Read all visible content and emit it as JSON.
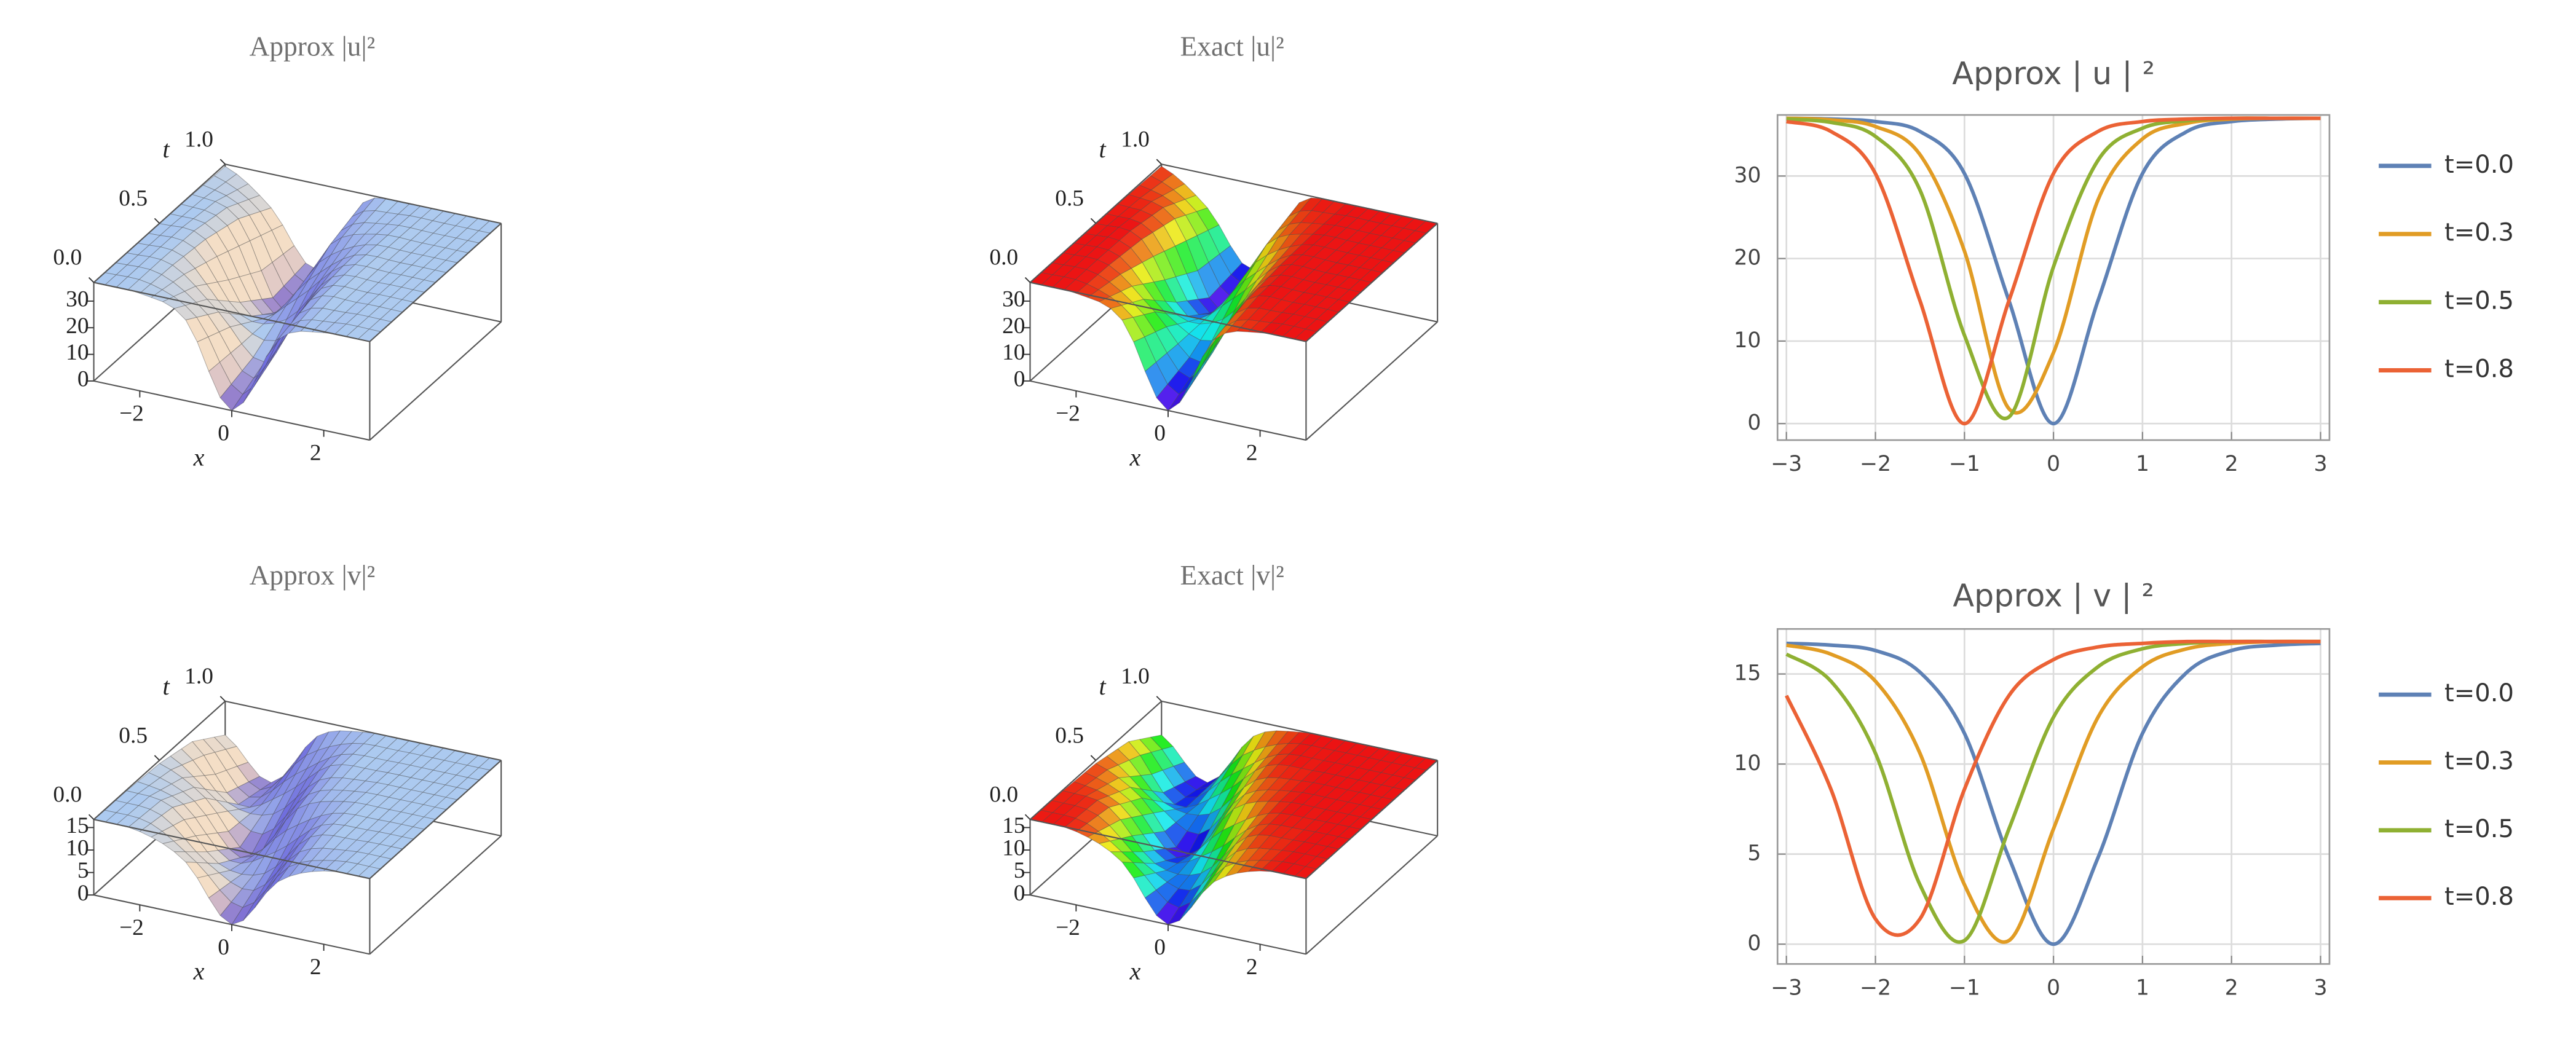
{
  "chart_data": [
    {
      "type": "surface",
      "title": "Approx |u|²",
      "xlabel": "x",
      "ylabel": "t",
      "colormap": "light",
      "x": [
        -3,
        -2,
        -1,
        0,
        1,
        2,
        3
      ],
      "t": [
        0,
        0.25,
        0.5,
        0.75,
        1
      ],
      "z": [
        [
          37.0,
          36.6,
          30.3,
          0,
          30.3,
          36.6,
          37.0
        ],
        [
          37.0,
          36.1,
          22.2,
          7.1,
          34.2,
          36.9,
          37.0
        ],
        [
          36.9,
          34.7,
          9.5,
          20.0,
          35.9,
          37.0,
          37.0
        ],
        [
          36.7,
          31.3,
          0.3,
          29.1,
          36.6,
          37.0,
          37.0
        ],
        [
          36.2,
          24.3,
          4.7,
          33.7,
          36.8,
          37.0,
          37.0
        ]
      ],
      "xlim": [
        -3,
        3
      ],
      "ylim": [
        0,
        1
      ],
      "zlim": [
        0,
        37
      ],
      "xticks": [
        {
          "value": -2,
          "label": "−2"
        },
        0,
        2
      ],
      "yticks": [
        {
          "value": 0,
          "label": "0.0"
        },
        {
          "value": 0.5,
          "label": "0.5"
        },
        {
          "value": 1,
          "label": "1.0"
        }
      ],
      "zticks": [
        0,
        10,
        20,
        30
      ]
    },
    {
      "type": "surface",
      "title": "Exact |u|²",
      "xlabel": "x",
      "ylabel": "t",
      "colormap": "rainbow",
      "x": [
        -3,
        -2,
        -1,
        0,
        1,
        2,
        3
      ],
      "t": [
        0,
        0.25,
        0.5,
        0.75,
        1
      ],
      "z": [
        [
          37.0,
          36.6,
          30.3,
          0,
          30.3,
          36.6,
          37.0
        ],
        [
          37.0,
          36.1,
          22.2,
          7.1,
          34.2,
          36.9,
          37.0
        ],
        [
          36.9,
          34.7,
          9.5,
          20.0,
          35.9,
          37.0,
          37.0
        ],
        [
          36.7,
          31.3,
          0.3,
          29.1,
          36.6,
          37.0,
          37.0
        ],
        [
          36.2,
          24.3,
          4.7,
          33.7,
          36.8,
          37.0,
          37.0
        ]
      ],
      "xlim": [
        -3,
        3
      ],
      "ylim": [
        0,
        1
      ],
      "zlim": [
        0,
        37
      ],
      "xticks": [
        {
          "value": -2,
          "label": "−2"
        },
        0,
        2
      ],
      "yticks": [
        {
          "value": 0,
          "label": "0.0"
        },
        {
          "value": 0.5,
          "label": "0.5"
        },
        {
          "value": 1,
          "label": "1.0"
        }
      ],
      "zticks": [
        0,
        10,
        20,
        30
      ]
    },
    {
      "type": "line",
      "title": "Approx | u | ²",
      "legend": "right",
      "grid": true,
      "x": [
        -3,
        -2.5,
        -2,
        -1.5,
        -1,
        -0.5,
        0,
        0.5,
        1,
        1.5,
        2,
        2.5,
        3
      ],
      "series": [
        {
          "name": "t=0.0",
          "color": "#5e81b5",
          "values": [
            37.0,
            36.9,
            36.6,
            35.4,
            30.3,
            14.9,
            0,
            14.9,
            30.3,
            35.4,
            36.6,
            36.9,
            37.0
          ]
        },
        {
          "name": "t=0.3",
          "color": "#e19c24",
          "values": [
            37.0,
            36.8,
            36.0,
            32.6,
            20.9,
            1.8,
            8.6,
            27.1,
            34.5,
            36.4,
            36.9,
            37.0,
            37.0
          ]
        },
        {
          "name": "t=0.5",
          "color": "#8fb032",
          "values": [
            36.9,
            36.5,
            34.8,
            28.3,
            10.7,
            0.8,
            19.0,
            31.9,
            35.8,
            36.7,
            37.0,
            37.0,
            37.0
          ]
        },
        {
          "name": "t=0.8",
          "color": "#eb6235",
          "values": [
            36.6,
            35.4,
            30.3,
            14.9,
            0,
            14.9,
            30.3,
            35.4,
            36.6,
            36.9,
            37.0,
            37.0,
            37.0
          ]
        }
      ],
      "xlim": [
        -3.1,
        3.1
      ],
      "ylim": [
        -2,
        37.4
      ],
      "xticks": [
        {
          "value": -3,
          "label": "−3"
        },
        {
          "value": -2,
          "label": "−2"
        },
        {
          "value": -1,
          "label": "−1"
        },
        0,
        1,
        2,
        3
      ],
      "yticks": [
        0,
        10,
        20,
        30
      ]
    },
    {
      "type": "surface",
      "title": "Approx |v|²",
      "xlabel": "x",
      "ylabel": "t",
      "colormap": "light",
      "x": [
        -3,
        -2,
        -1,
        0,
        1,
        2,
        3
      ],
      "t": [
        0,
        0.25,
        0.5,
        0.75,
        1
      ],
      "z": [
        [
          16.7,
          16.3,
          11.7,
          0,
          11.7,
          16.3,
          16.7
        ],
        [
          16.6,
          15.1,
          4.8,
          4.8,
          15.1,
          16.6,
          16.8
        ],
        [
          16.1,
          10.6,
          0.2,
          12.6,
          16.4,
          16.8,
          16.8
        ],
        [
          14.4,
          2.6,
          7.2,
          15.6,
          16.7,
          16.8,
          16.8
        ],
        [
          9.3,
          0.9,
          13.4,
          16.5,
          16.8,
          16.8,
          16.8
        ]
      ],
      "xlim": [
        -3,
        3
      ],
      "ylim": [
        0,
        1
      ],
      "zlim": [
        0,
        16.8
      ],
      "xticks": [
        {
          "value": -2,
          "label": "−2"
        },
        0,
        2
      ],
      "yticks": [
        {
          "value": 0,
          "label": "0.0"
        },
        {
          "value": 0.5,
          "label": "0.5"
        },
        {
          "value": 1,
          "label": "1.0"
        }
      ],
      "zticks": [
        0,
        5,
        10,
        15
      ]
    },
    {
      "type": "surface",
      "title": "Exact |v|²",
      "xlabel": "x",
      "ylabel": "t",
      "colormap": "rainbow",
      "x": [
        -3,
        -2,
        -1,
        0,
        1,
        2,
        3
      ],
      "t": [
        0,
        0.25,
        0.5,
        0.75,
        1
      ],
      "z": [
        [
          16.7,
          16.3,
          11.7,
          0,
          11.7,
          16.3,
          16.7
        ],
        [
          16.6,
          15.1,
          4.8,
          4.8,
          15.1,
          16.6,
          16.8
        ],
        [
          16.1,
          10.6,
          0.2,
          12.6,
          16.4,
          16.8,
          16.8
        ],
        [
          14.4,
          2.6,
          7.2,
          15.6,
          16.7,
          16.8,
          16.8
        ],
        [
          9.3,
          0.9,
          13.4,
          16.5,
          16.8,
          16.8,
          16.8
        ]
      ],
      "xlim": [
        -3,
        3
      ],
      "ylim": [
        0,
        1
      ],
      "zlim": [
        0,
        16.8
      ],
      "xticks": [
        {
          "value": -2,
          "label": "−2"
        },
        0,
        2
      ],
      "yticks": [
        {
          "value": 0,
          "label": "0.0"
        },
        {
          "value": 0.5,
          "label": "0.5"
        },
        {
          "value": 1,
          "label": "1.0"
        }
      ],
      "zticks": [
        0,
        5,
        10,
        15
      ]
    },
    {
      "type": "line",
      "title": "Approx | v | ²",
      "legend": "right",
      "grid": true,
      "x": [
        -3,
        -2.5,
        -2,
        -1.5,
        -1,
        -0.5,
        0,
        0.5,
        1,
        1.5,
        2,
        2.5,
        3
      ],
      "series": [
        {
          "name": "t=0.0",
          "color": "#5e81b5",
          "values": [
            16.7,
            16.6,
            16.3,
            15.1,
            11.7,
            4.8,
            0,
            4.8,
            11.7,
            15.1,
            16.3,
            16.6,
            16.7
          ]
        },
        {
          "name": "t=0.3",
          "color": "#e19c24",
          "values": [
            16.6,
            16.1,
            14.6,
            10.6,
            3.3,
            0.2,
            6.4,
            12.6,
            15.4,
            16.4,
            16.7,
            16.8,
            16.8
          ]
        },
        {
          "name": "t=0.5",
          "color": "#8fb032",
          "values": [
            16.1,
            14.6,
            10.6,
            3.3,
            0.2,
            6.4,
            12.6,
            15.4,
            16.4,
            16.7,
            16.8,
            16.8,
            16.8
          ]
        },
        {
          "name": "t=0.8",
          "color": "#eb6235",
          "values": [
            13.8,
            8.6,
            1.4,
            1.4,
            8.6,
            13.8,
            15.8,
            16.5,
            16.7,
            16.8,
            16.8,
            16.8,
            16.8
          ]
        }
      ],
      "xlim": [
        -3.1,
        3.1
      ],
      "ylim": [
        -1.1,
        17.5
      ],
      "xticks": [
        {
          "value": -3,
          "label": "−3"
        },
        {
          "value": -2,
          "label": "−2"
        },
        {
          "value": -1,
          "label": "−1"
        },
        0,
        1,
        2,
        3
      ],
      "yticks": [
        0,
        5,
        10,
        15
      ]
    }
  ]
}
